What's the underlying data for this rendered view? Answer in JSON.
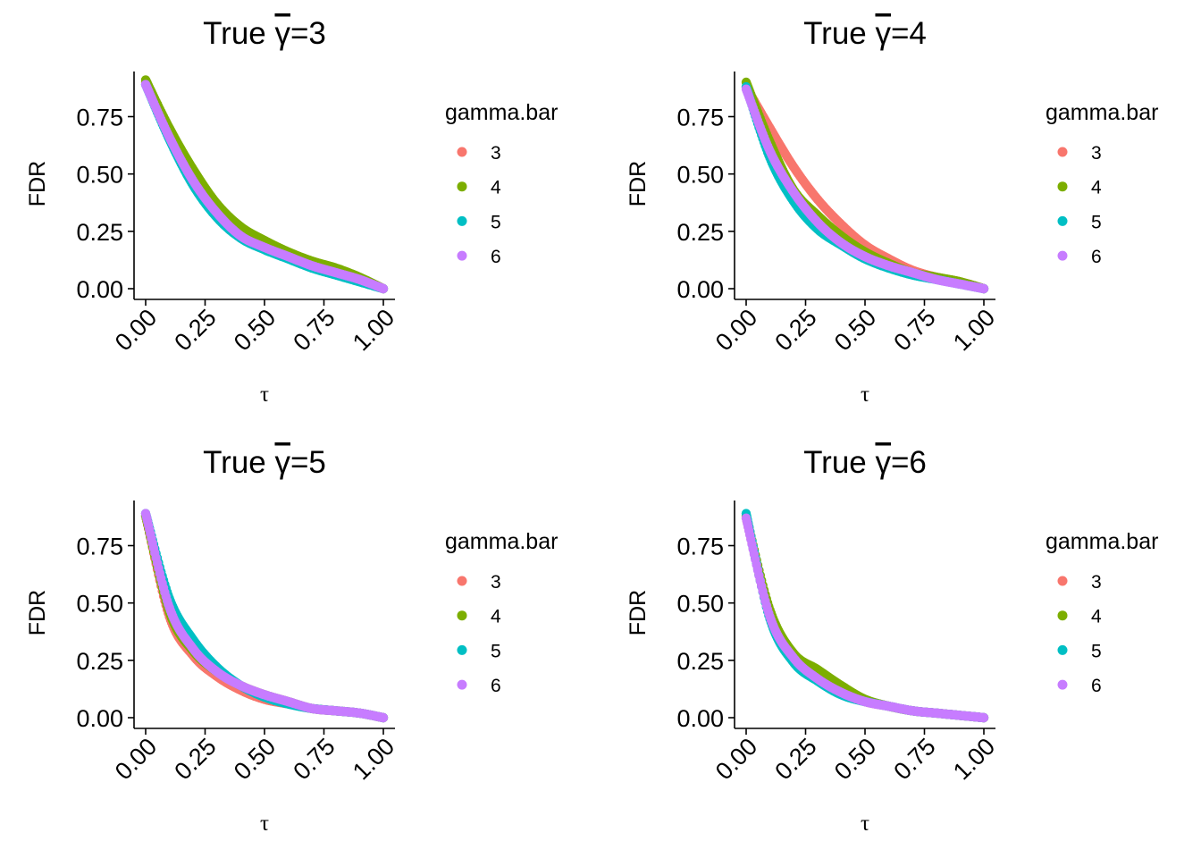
{
  "chart_data": [
    {
      "type": "scatter",
      "title_prefix": "True ",
      "title_symbol": "γ",
      "title_suffix": "=3",
      "xlabel": "τ",
      "ylabel": "FDR",
      "xlim": [
        0,
        1
      ],
      "ylim": [
        0,
        0.9
      ],
      "xticks": [
        "0.00",
        "0.25",
        "0.50",
        "0.75",
        "1.00"
      ],
      "yticks": [
        "0.00",
        "0.25",
        "0.50",
        "0.75"
      ],
      "legend": {
        "title": "gamma.bar",
        "position": "right",
        "entries": [
          "3",
          "4",
          "5",
          "6"
        ]
      },
      "series": [
        {
          "name": "3",
          "color": "#F8766D",
          "x": [
            0,
            0.1,
            0.2,
            0.3,
            0.4,
            0.5,
            0.6,
            0.7,
            0.8,
            0.9,
            1.0
          ],
          "y": [
            0.9,
            0.68,
            0.49,
            0.34,
            0.24,
            0.18,
            0.14,
            0.1,
            0.07,
            0.04,
            0.0
          ]
        },
        {
          "name": "4",
          "color": "#7CAE00",
          "x": [
            0,
            0.1,
            0.2,
            0.3,
            0.4,
            0.5,
            0.6,
            0.7,
            0.8,
            0.9,
            1.0
          ],
          "y": [
            0.91,
            0.7,
            0.52,
            0.37,
            0.27,
            0.21,
            0.16,
            0.12,
            0.09,
            0.05,
            0.0
          ]
        },
        {
          "name": "5",
          "color": "#00BFC4",
          "x": [
            0,
            0.1,
            0.2,
            0.3,
            0.4,
            0.5,
            0.6,
            0.7,
            0.8,
            0.9,
            1.0
          ],
          "y": [
            0.89,
            0.65,
            0.45,
            0.31,
            0.22,
            0.17,
            0.13,
            0.09,
            0.06,
            0.03,
            0.0
          ]
        },
        {
          "name": "6",
          "color": "#C77CFF",
          "x": [
            0,
            0.1,
            0.2,
            0.3,
            0.4,
            0.5,
            0.6,
            0.7,
            0.8,
            0.9,
            1.0
          ],
          "y": [
            0.89,
            0.66,
            0.47,
            0.33,
            0.23,
            0.18,
            0.14,
            0.1,
            0.07,
            0.04,
            0.0
          ]
        }
      ]
    },
    {
      "type": "scatter",
      "title_prefix": "True ",
      "title_symbol": "γ",
      "title_suffix": "=4",
      "xlabel": "τ",
      "ylabel": "FDR",
      "xlim": [
        0,
        1
      ],
      "ylim": [
        0,
        0.9
      ],
      "xticks": [
        "0.00",
        "0.25",
        "0.50",
        "0.75",
        "1.00"
      ],
      "yticks": [
        "0.00",
        "0.25",
        "0.50",
        "0.75"
      ],
      "legend": {
        "title": "gamma.bar",
        "position": "right",
        "entries": [
          "3",
          "4",
          "5",
          "6"
        ]
      },
      "series": [
        {
          "name": "3",
          "color": "#F8766D",
          "x": [
            0,
            0.1,
            0.2,
            0.3,
            0.4,
            0.5,
            0.6,
            0.7,
            0.8,
            0.9,
            1.0
          ],
          "y": [
            0.88,
            0.7,
            0.53,
            0.39,
            0.28,
            0.19,
            0.13,
            0.08,
            0.05,
            0.03,
            0.0
          ]
        },
        {
          "name": "4",
          "color": "#7CAE00",
          "x": [
            0,
            0.1,
            0.2,
            0.3,
            0.4,
            0.5,
            0.6,
            0.7,
            0.8,
            0.9,
            1.0
          ],
          "y": [
            0.9,
            0.64,
            0.43,
            0.32,
            0.23,
            0.16,
            0.11,
            0.07,
            0.05,
            0.03,
            0.0
          ]
        },
        {
          "name": "5",
          "color": "#00BFC4",
          "x": [
            0,
            0.1,
            0.2,
            0.3,
            0.4,
            0.5,
            0.6,
            0.7,
            0.8,
            0.9,
            1.0
          ],
          "y": [
            0.88,
            0.57,
            0.38,
            0.26,
            0.19,
            0.13,
            0.09,
            0.06,
            0.04,
            0.02,
            0.0
          ]
        },
        {
          "name": "6",
          "color": "#C77CFF",
          "x": [
            0,
            0.1,
            0.2,
            0.3,
            0.4,
            0.5,
            0.6,
            0.7,
            0.8,
            0.9,
            1.0
          ],
          "y": [
            0.87,
            0.6,
            0.42,
            0.29,
            0.2,
            0.14,
            0.1,
            0.07,
            0.04,
            0.02,
            0.0
          ]
        }
      ]
    },
    {
      "type": "scatter",
      "title_prefix": "True ",
      "title_symbol": "γ",
      "title_suffix": "=5",
      "xlabel": "τ",
      "ylabel": "FDR",
      "xlim": [
        0,
        1
      ],
      "ylim": [
        0,
        0.9
      ],
      "xticks": [
        "0.00",
        "0.25",
        "0.50",
        "0.75",
        "1.00"
      ],
      "yticks": [
        "0.00",
        "0.25",
        "0.50",
        "0.75"
      ],
      "legend": {
        "title": "gamma.bar",
        "position": "right",
        "entries": [
          "3",
          "4",
          "5",
          "6"
        ]
      },
      "series": [
        {
          "name": "3",
          "color": "#F8766D",
          "x": [
            0,
            0.1,
            0.2,
            0.3,
            0.4,
            0.5,
            0.6,
            0.7,
            0.8,
            0.9,
            1.0
          ],
          "y": [
            0.88,
            0.44,
            0.27,
            0.18,
            0.12,
            0.08,
            0.06,
            0.04,
            0.03,
            0.02,
            0.0
          ]
        },
        {
          "name": "4",
          "color": "#7CAE00",
          "x": [
            0,
            0.1,
            0.2,
            0.3,
            0.4,
            0.5,
            0.6,
            0.7,
            0.8,
            0.9,
            1.0
          ],
          "y": [
            0.88,
            0.46,
            0.29,
            0.2,
            0.14,
            0.1,
            0.07,
            0.04,
            0.03,
            0.02,
            0.0
          ]
        },
        {
          "name": "5",
          "color": "#00BFC4",
          "x": [
            0,
            0.1,
            0.2,
            0.3,
            0.4,
            0.5,
            0.6,
            0.7,
            0.8,
            0.9,
            1.0
          ],
          "y": [
            0.89,
            0.52,
            0.34,
            0.22,
            0.14,
            0.09,
            0.06,
            0.04,
            0.03,
            0.02,
            0.0
          ]
        },
        {
          "name": "6",
          "color": "#C77CFF",
          "x": [
            0,
            0.1,
            0.2,
            0.3,
            0.4,
            0.5,
            0.6,
            0.7,
            0.8,
            0.9,
            1.0
          ],
          "y": [
            0.89,
            0.48,
            0.3,
            0.2,
            0.14,
            0.1,
            0.07,
            0.04,
            0.03,
            0.02,
            0.0
          ]
        }
      ]
    },
    {
      "type": "scatter",
      "title_prefix": "True ",
      "title_symbol": "γ",
      "title_suffix": "=6",
      "xlabel": "τ",
      "ylabel": "FDR",
      "xlim": [
        0,
        1
      ],
      "ylim": [
        0,
        0.9
      ],
      "xticks": [
        "0.00",
        "0.25",
        "0.50",
        "0.75",
        "1.00"
      ],
      "yticks": [
        "0.00",
        "0.25",
        "0.50",
        "0.75"
      ],
      "legend": {
        "title": "gamma.bar",
        "position": "right",
        "entries": [
          "3",
          "4",
          "5",
          "6"
        ]
      },
      "series": [
        {
          "name": "3",
          "color": "#F8766D",
          "x": [
            0,
            0.1,
            0.2,
            0.3,
            0.4,
            0.5,
            0.6,
            0.7,
            0.8,
            0.9,
            1.0
          ],
          "y": [
            0.87,
            0.45,
            0.26,
            0.17,
            0.11,
            0.07,
            0.05,
            0.03,
            0.02,
            0.01,
            0.0
          ]
        },
        {
          "name": "4",
          "color": "#7CAE00",
          "x": [
            0,
            0.1,
            0.2,
            0.3,
            0.4,
            0.5,
            0.6,
            0.7,
            0.8,
            0.9,
            1.0
          ],
          "y": [
            0.88,
            0.47,
            0.28,
            0.21,
            0.14,
            0.08,
            0.05,
            0.03,
            0.02,
            0.01,
            0.0
          ]
        },
        {
          "name": "5",
          "color": "#00BFC4",
          "x": [
            0,
            0.1,
            0.2,
            0.3,
            0.4,
            0.5,
            0.6,
            0.7,
            0.8,
            0.9,
            1.0
          ],
          "y": [
            0.89,
            0.43,
            0.24,
            0.16,
            0.1,
            0.07,
            0.05,
            0.03,
            0.02,
            0.01,
            0.0
          ]
        },
        {
          "name": "6",
          "color": "#C77CFF",
          "x": [
            0,
            0.1,
            0.2,
            0.3,
            0.4,
            0.5,
            0.6,
            0.7,
            0.8,
            0.9,
            1.0
          ],
          "y": [
            0.87,
            0.44,
            0.26,
            0.17,
            0.11,
            0.07,
            0.05,
            0.03,
            0.02,
            0.01,
            0.0
          ]
        }
      ]
    }
  ]
}
